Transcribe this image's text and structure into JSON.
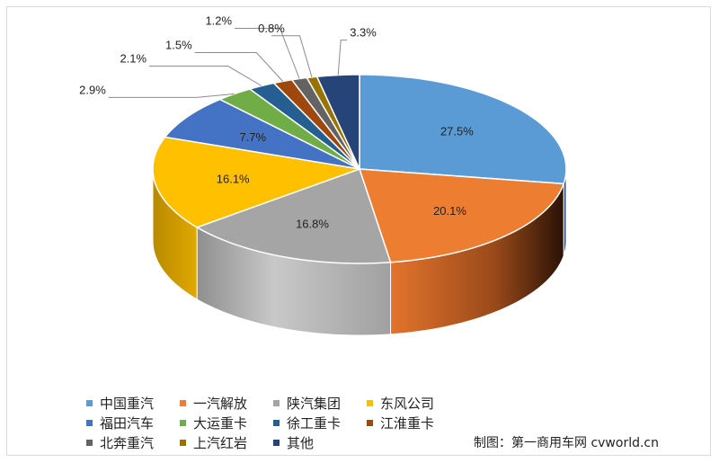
{
  "chart_data": {
    "type": "pie",
    "title": "",
    "series": [
      {
        "name": "中国重汽",
        "value": 27.5,
        "label": "27.5%",
        "color": "#5b9bd5"
      },
      {
        "name": "一汽解放",
        "value": 20.1,
        "label": "20.1%",
        "color": "#ed7d31"
      },
      {
        "name": "陕汽集团",
        "value": 16.8,
        "label": "16.8%",
        "color": "#a5a5a5"
      },
      {
        "name": "东风公司",
        "value": 16.1,
        "label": "16.1%",
        "color": "#ffc000"
      },
      {
        "name": "福田汽车",
        "value": 7.7,
        "label": "7.7%",
        "color": "#4472c4"
      },
      {
        "name": "大运重卡",
        "value": 2.9,
        "label": "2.9%",
        "color": "#70ad47"
      },
      {
        "name": "徐工重卡",
        "value": 2.1,
        "label": "2.1%",
        "color": "#255e91"
      },
      {
        "name": "江淮重卡",
        "value": 1.5,
        "label": "1.5%",
        "color": "#9e480e"
      },
      {
        "name": "北奔重汽",
        "value": 1.2,
        "label": "1.2%",
        "color": "#636363"
      },
      {
        "name": "上汽红岩",
        "value": 0.8,
        "label": "0.8%",
        "color": "#997300"
      },
      {
        "name": "其他",
        "value": 3.3,
        "label": "3.3%",
        "color": "#264478"
      }
    ],
    "legend_placement": "bottom-left",
    "style": "3d-pie"
  },
  "credit": "制图：第一商用车网 cvworld.cn"
}
